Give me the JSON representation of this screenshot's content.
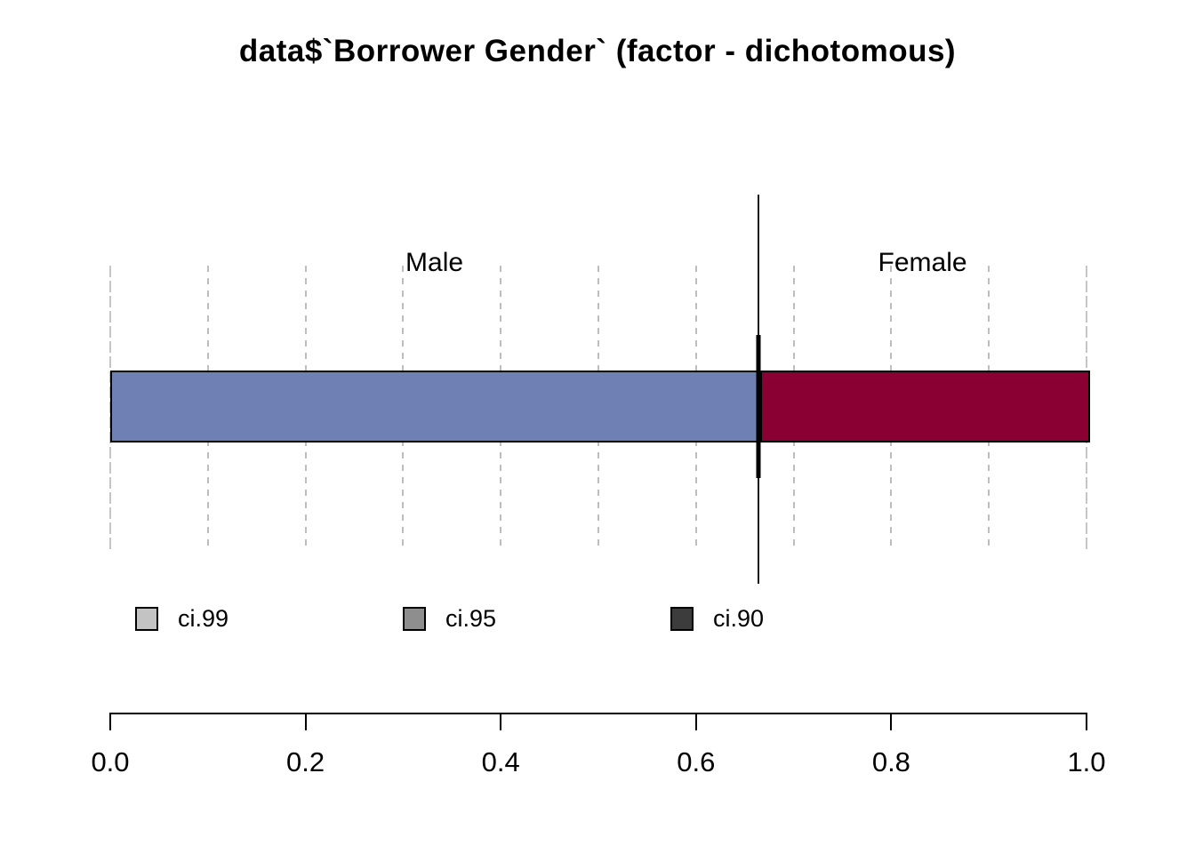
{
  "chart_data": {
    "type": "bar",
    "subtype": "horizontal-stacked-proportion",
    "title": "data$`Borrower Gender` (factor - dichotomous)",
    "categories": [
      "Male",
      "Female"
    ],
    "values": [
      0.664,
      0.336
    ],
    "point_estimate": 0.664,
    "xlabel": "",
    "ylabel": "",
    "xlim": [
      0.0,
      1.0
    ],
    "x_ticks": [
      "0.0",
      "0.2",
      "0.4",
      "0.6",
      "0.8",
      "1.0"
    ],
    "x_tick_positions": [
      0.0,
      0.2,
      0.4,
      0.6,
      0.8,
      1.0
    ],
    "gridline_positions": [
      0.0,
      0.1,
      0.2,
      0.3,
      0.4,
      0.5,
      0.6,
      0.7,
      0.8,
      0.9,
      1.0
    ],
    "grid": "dashed-vertical",
    "colors": {
      "male": "#6E80B4",
      "female": "#8B0033",
      "bar_border": "#000000",
      "gridline": "#BDBDBD",
      "ci_line": "#000000"
    },
    "legend": [
      {
        "label": "ci.99",
        "color": "#C3C3C3"
      },
      {
        "label": "ci.95",
        "color": "#8E8E8E"
      },
      {
        "label": "ci.90",
        "color": "#3C3C3C"
      }
    ],
    "legend_position": "below-plot"
  }
}
